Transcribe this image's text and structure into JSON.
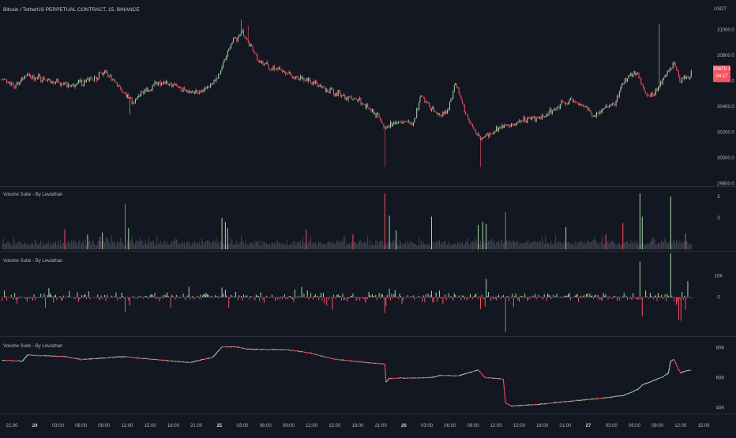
{
  "header": {
    "symbol_title": "Bitcoin / TetherUS PERPETUAL CONTRACT, 15, BINANCE",
    "currency": "USDT"
  },
  "price_tag": {
    "price": "30679.1",
    "countdown": "04:17",
    "color": "#f7525f"
  },
  "colors": {
    "background": "#131722",
    "up": "#a5d6a7",
    "down": "#f7525f",
    "neutral_volume": "#434651",
    "line": "#f7525f",
    "grid_separator": "#2a2e39",
    "text": "#b2b5be"
  },
  "chart_data": [
    {
      "type": "candlestick",
      "title": "Bitcoin / TetherUS PERPETUAL CONTRACT, 15, BINANCE",
      "y_ticks": [
        "31000.0",
        "30800.0",
        "30600.0",
        "30400.0",
        "30200.0",
        "30000.0",
        "29800.0"
      ],
      "ylim": [
        29780,
        31120
      ],
      "keypoints": [
        [
          0,
          30620
        ],
        [
          10,
          30550
        ],
        [
          20,
          30640
        ],
        [
          35,
          30620
        ],
        [
          45,
          30590
        ],
        [
          60,
          30560
        ],
        [
          75,
          30610
        ],
        [
          90,
          30660
        ],
        [
          100,
          30580
        ],
        [
          115,
          30430
        ],
        [
          125,
          30520
        ],
        [
          140,
          30600
        ],
        [
          150,
          30560
        ],
        [
          165,
          30510
        ],
        [
          180,
          30540
        ],
        [
          190,
          30630
        ],
        [
          200,
          30880
        ],
        [
          210,
          30980
        ],
        [
          215,
          30920
        ],
        [
          225,
          30760
        ],
        [
          240,
          30690
        ],
        [
          255,
          30640
        ],
        [
          270,
          30610
        ],
        [
          280,
          30550
        ],
        [
          290,
          30520
        ],
        [
          300,
          30480
        ],
        [
          308,
          30470
        ],
        [
          318,
          30420
        ],
        [
          330,
          30320
        ],
        [
          336,
          30230
        ],
        [
          342,
          30270
        ],
        [
          352,
          30280
        ],
        [
          360,
          30260
        ],
        [
          368,
          30480
        ],
        [
          375,
          30400
        ],
        [
          385,
          30330
        ],
        [
          392,
          30380
        ],
        [
          398,
          30580
        ],
        [
          404,
          30420
        ],
        [
          412,
          30250
        ],
        [
          420,
          30140
        ],
        [
          428,
          30190
        ],
        [
          440,
          30250
        ],
        [
          452,
          30270
        ],
        [
          462,
          30300
        ],
        [
          475,
          30330
        ],
        [
          488,
          30400
        ],
        [
          500,
          30460
        ],
        [
          510,
          30400
        ],
        [
          520,
          30330
        ],
        [
          530,
          30390
        ],
        [
          538,
          30420
        ],
        [
          546,
          30600
        ],
        [
          552,
          30640
        ],
        [
          558,
          30650
        ],
        [
          562,
          30560
        ],
        [
          568,
          30470
        ],
        [
          575,
          30520
        ],
        [
          583,
          30660
        ],
        [
          590,
          30730
        ],
        [
          596,
          30600
        ],
        [
          602,
          30640
        ]
      ],
      "last_price": 30679.1,
      "spikes": [
        {
          "i": 210,
          "high": 31080
        },
        {
          "i": 216,
          "high": 31030
        },
        {
          "i": 112,
          "high": 30340
        },
        {
          "i": 336,
          "low": 29930
        },
        {
          "i": 420,
          "low": 29930
        },
        {
          "i": 577,
          "high": 31040
        }
      ]
    },
    {
      "type": "bar",
      "title": "Volume Suite - By Leviathan",
      "y_ticks": [
        "5",
        "3"
      ],
      "ylim": [
        0,
        5.6
      ],
      "spikes": [
        {
          "i": 55,
          "v": 1.9,
          "c": "down"
        },
        {
          "i": 75,
          "v": 1.4,
          "c": "up"
        },
        {
          "i": 86,
          "v": 1.2,
          "c": "down"
        },
        {
          "i": 88,
          "v": 1.6,
          "c": "up"
        },
        {
          "i": 108,
          "v": 4.3,
          "c": "down"
        },
        {
          "i": 111,
          "v": 2.0,
          "c": "up"
        },
        {
          "i": 193,
          "v": 3.0,
          "c": "up"
        },
        {
          "i": 196,
          "v": 2.6,
          "c": "up"
        },
        {
          "i": 198,
          "v": 2.0,
          "c": "up"
        },
        {
          "i": 267,
          "v": 1.9,
          "c": "down"
        },
        {
          "i": 308,
          "v": 1.4,
          "c": "down"
        },
        {
          "i": 336,
          "v": 5.3,
          "c": "down"
        },
        {
          "i": 340,
          "v": 3.2,
          "c": "up"
        },
        {
          "i": 346,
          "v": 1.8,
          "c": "up"
        },
        {
          "i": 377,
          "v": 3.1,
          "c": "up"
        },
        {
          "i": 418,
          "v": 2.3,
          "c": "up"
        },
        {
          "i": 422,
          "v": 2.6,
          "c": "up"
        },
        {
          "i": 425,
          "v": 2.4,
          "c": "up"
        },
        {
          "i": 442,
          "v": 3.5,
          "c": "down"
        },
        {
          "i": 495,
          "v": 2.1,
          "c": "up"
        },
        {
          "i": 530,
          "v": 1.4,
          "c": "down"
        },
        {
          "i": 545,
          "v": 2.5,
          "c": "down"
        },
        {
          "i": 560,
          "v": 5.3,
          "c": "up"
        },
        {
          "i": 562,
          "v": 3.1,
          "c": "up"
        },
        {
          "i": 587,
          "v": 5.0,
          "c": "up"
        },
        {
          "i": 600,
          "v": 1.5,
          "c": "down"
        }
      ]
    },
    {
      "type": "bar",
      "title": "Volume Suite - By Leviathan",
      "y_ticks": [
        "10K",
        "0"
      ],
      "ylim": [
        -17500,
        19000
      ],
      "spikes": [
        {
          "i": 108,
          "v": -7000
        },
        {
          "i": 112,
          "v": -4000
        },
        {
          "i": 193,
          "v": 4500
        },
        {
          "i": 196,
          "v": 3500
        },
        {
          "i": 290,
          "v": -6000
        },
        {
          "i": 336,
          "v": -7500
        },
        {
          "i": 340,
          "v": 4000
        },
        {
          "i": 377,
          "v": 3000
        },
        {
          "i": 420,
          "v": -5500
        },
        {
          "i": 424,
          "v": -4500
        },
        {
          "i": 425,
          "v": 8500
        },
        {
          "i": 442,
          "v": -16500
        },
        {
          "i": 560,
          "v": 16500
        },
        {
          "i": 562,
          "v": -9000
        },
        {
          "i": 587,
          "v": 20500
        },
        {
          "i": 592,
          "v": -3500
        },
        {
          "i": 594,
          "v": -10500
        },
        {
          "i": 596,
          "v": -11000
        },
        {
          "i": 600,
          "v": -6000
        },
        {
          "i": 602,
          "v": 7500
        }
      ]
    },
    {
      "type": "line",
      "title": "Volume Suite - By Leviathan",
      "y_ticks": [
        "80K",
        "60K",
        "40K"
      ],
      "ylim": [
        36000,
        86000
      ],
      "keypoints": [
        [
          0,
          71500
        ],
        [
          18,
          71000
        ],
        [
          22,
          75000
        ],
        [
          55,
          74000
        ],
        [
          70,
          72000
        ],
        [
          108,
          74000
        ],
        [
          112,
          73500
        ],
        [
          150,
          71000
        ],
        [
          165,
          70000
        ],
        [
          185,
          73500
        ],
        [
          193,
          80500
        ],
        [
          205,
          80500
        ],
        [
          215,
          79000
        ],
        [
          250,
          78500
        ],
        [
          270,
          76500
        ],
        [
          290,
          72500
        ],
        [
          320,
          70000
        ],
        [
          336,
          69000
        ],
        [
          337,
          57000
        ],
        [
          340,
          59500
        ],
        [
          377,
          60000
        ],
        [
          385,
          61500
        ],
        [
          400,
          61000
        ],
        [
          418,
          65000
        ],
        [
          424,
          60000
        ],
        [
          440,
          59000
        ],
        [
          442,
          43000
        ],
        [
          447,
          41000
        ],
        [
          470,
          42000
        ],
        [
          495,
          44000
        ],
        [
          530,
          46500
        ],
        [
          545,
          48000
        ],
        [
          558,
          52000
        ],
        [
          562,
          55000
        ],
        [
          572,
          58000
        ],
        [
          580,
          60500
        ],
        [
          585,
          63000
        ],
        [
          587,
          71000
        ],
        [
          590,
          72000
        ],
        [
          594,
          65000
        ],
        [
          596,
          63000
        ],
        [
          600,
          64500
        ],
        [
          605,
          65000
        ]
      ]
    }
  ],
  "x_axis": {
    "labels": [
      "21:00",
      "24",
      "03:00",
      "06:00",
      "09:00",
      "12:00",
      "15:00",
      "18:00",
      "21:00",
      "25",
      "03:00",
      "06:00",
      "09:00",
      "12:00",
      "15:00",
      "18:00",
      "21:00",
      "26",
      "03:00",
      "06:00",
      "09:00",
      "12:00",
      "15:00",
      "18:00",
      "21:00",
      "27",
      "03:00",
      "06:00",
      "09:00",
      "12:00",
      "15:00"
    ]
  },
  "num_candles": 606
}
